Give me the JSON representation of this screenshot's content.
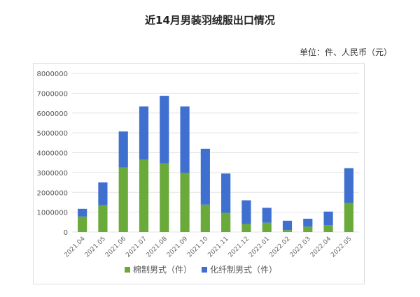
{
  "chart_data": {
    "type": "bar",
    "stacked": true,
    "title": "近14月男装羽绒服出口情况",
    "unit_note": "单位：件、人民币（元）",
    "categories": [
      "2021.04",
      "2021.05",
      "2021.06",
      "2021.07",
      "2021.08",
      "2021.09",
      "2021.10",
      "2021.11",
      "2021.12",
      "2022.01",
      "2022.02",
      "2022.03",
      "2022.04",
      "2022.05"
    ],
    "series": [
      {
        "name": "棉制男式（件）",
        "color": "#6aaa3a",
        "values": [
          780000,
          1350000,
          3250000,
          3650000,
          3470000,
          2980000,
          1380000,
          970000,
          400000,
          470000,
          100000,
          270000,
          350000,
          1480000
        ]
      },
      {
        "name": "化纤制男式（件）",
        "color": "#3f6fcf",
        "values": [
          390000,
          1150000,
          1820000,
          2680000,
          3400000,
          3350000,
          2820000,
          1980000,
          1200000,
          750000,
          470000,
          400000,
          680000,
          1740000
        ]
      }
    ],
    "ylim": [
      0,
      8000000
    ],
    "yticks": [
      "0",
      "1000000",
      "2000000",
      "3000000",
      "4000000",
      "5000000",
      "6000000",
      "7000000",
      "8000000"
    ],
    "legend": "bottom",
    "grid": true
  }
}
